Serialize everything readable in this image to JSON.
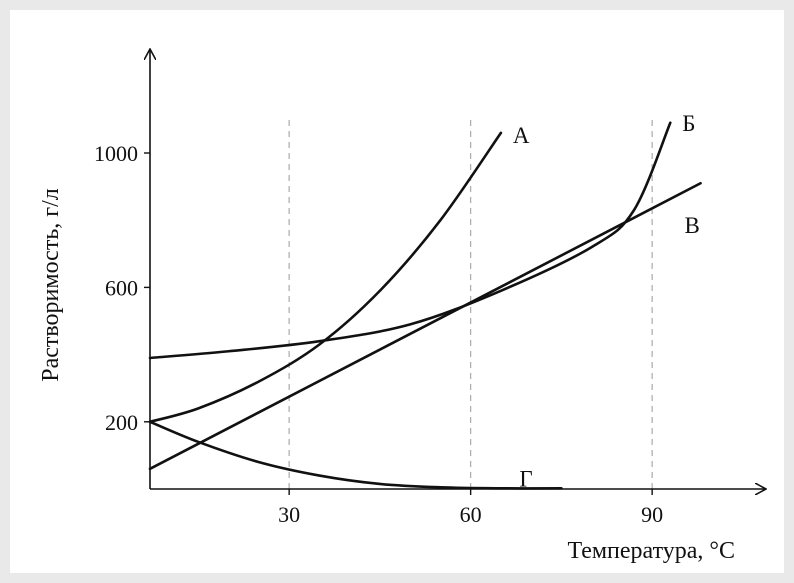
{
  "chart_data": {
    "type": "line",
    "title": "",
    "xlabel": "Температура, °С",
    "ylabel": "Растворимость, г/л",
    "xlim": [
      5,
      98
    ],
    "ylim": [
      0,
      1180
    ],
    "x_ticks": [
      30,
      60,
      90
    ],
    "y_ticks": [
      200,
      600,
      1000
    ],
    "grid_x": [
      30,
      60,
      90
    ],
    "colors": {
      "line": "#111111",
      "grid": "#aaaaaa"
    },
    "series": [
      {
        "name": "А",
        "x": [
          7,
          15,
          25,
          35,
          45,
          55,
          65
        ],
        "y": [
          200,
          240,
          320,
          430,
          590,
          800,
          1060
        ]
      },
      {
        "name": "Б",
        "x": [
          7,
          20,
          35,
          50,
          65,
          80,
          87,
          93
        ],
        "y": [
          390,
          410,
          440,
          490,
          590,
          720,
          830,
          1090
        ]
      },
      {
        "name": "В",
        "x": [
          7,
          98
        ],
        "y": [
          60,
          910
        ]
      },
      {
        "name": "Г",
        "x": [
          7,
          15,
          25,
          35,
          45,
          55,
          65,
          75
        ],
        "y": [
          200,
          140,
          80,
          40,
          15,
          5,
          2,
          2
        ]
      }
    ]
  }
}
